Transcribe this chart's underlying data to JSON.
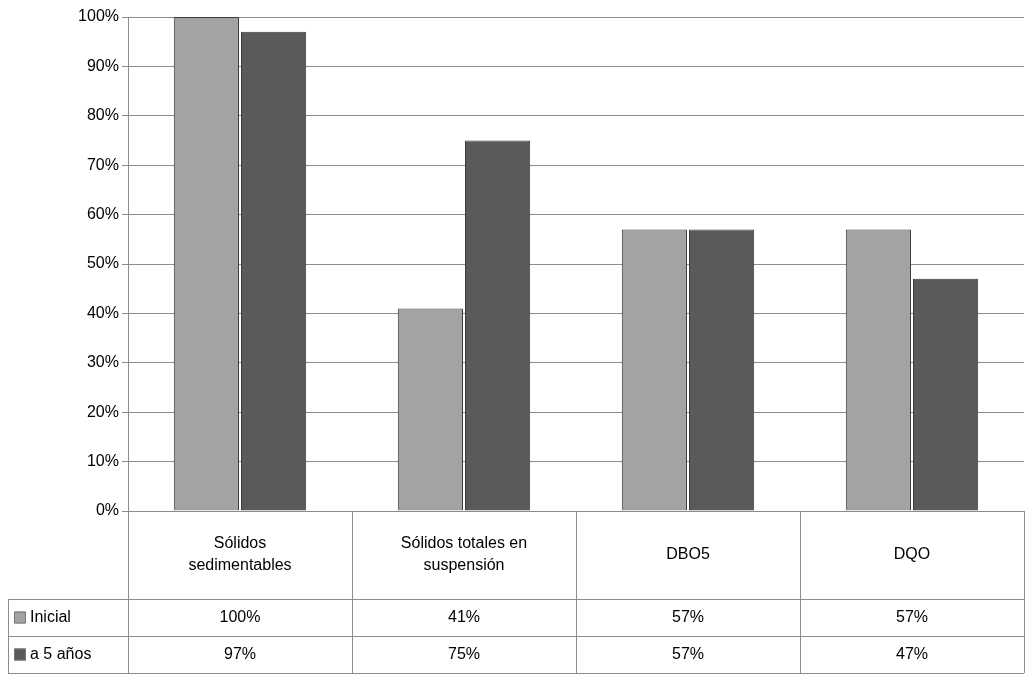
{
  "chart_data": {
    "type": "bar",
    "categories": [
      "Sólidos sedimentables",
      "Sólidos totales en suspensión",
      "DBO5",
      "DQO"
    ],
    "series": [
      {
        "name": "Inicial",
        "color": "#a3a3a3",
        "values": [
          100,
          41,
          57,
          57
        ],
        "value_labels": [
          "100%",
          "41%",
          "57%",
          "57%"
        ]
      },
      {
        "name": "a 5 años",
        "color": "#5a5a5a",
        "values": [
          97,
          75,
          57,
          47
        ],
        "value_labels": [
          "97%",
          "75%",
          "57%",
          "47%"
        ]
      }
    ],
    "ylim": [
      0,
      100
    ],
    "yticks": [
      {
        "value": 0,
        "label": "0%"
      },
      {
        "value": 10,
        "label": "10%"
      },
      {
        "value": 20,
        "label": "20%"
      },
      {
        "value": 30,
        "label": "30%"
      },
      {
        "value": 40,
        "label": "40%"
      },
      {
        "value": 50,
        "label": "50%"
      },
      {
        "value": 60,
        "label": "60%"
      },
      {
        "value": 70,
        "label": "70%"
      },
      {
        "value": 80,
        "label": "80%"
      },
      {
        "value": 90,
        "label": "90%"
      },
      {
        "value": 100,
        "label": "100%"
      }
    ],
    "grid": "y",
    "legend": "bottom left"
  }
}
